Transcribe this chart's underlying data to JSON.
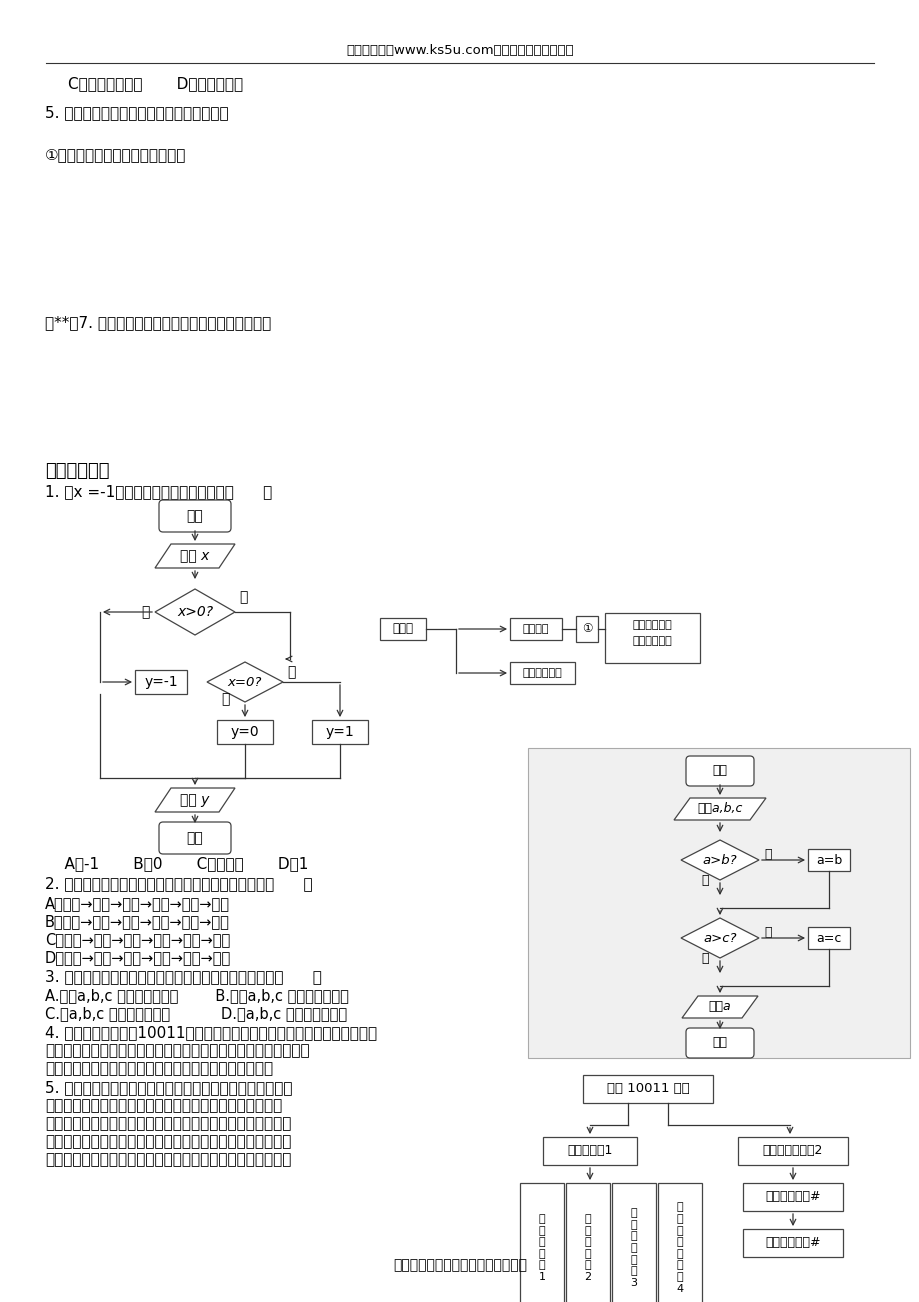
{
  "bg_color": "#ffffff",
  "header_text": "高考资源网（www.ks5u.com），您身边的高考专家",
  "line1": "C．概率统计定义       D．概率的应用",
  "line2": "5. 如图是按边对三角形进行分类的结构图，",
  "line3": "①处应填入＿＿＿＿＿＿＿＿＿．",
  "line4": "（**）7. 请画出判断一个数是否是素数的算法框图。",
  "section": "四．课后练习",
  "q1": "1. 把x =-1输入如图所示的流程图可得（      ）",
  "q1_options": "    A．-1       B．0       C．不存在       D．1",
  "q2": "2. 下面是去图书馆借阅图书的流程图，表示正确的是（      ）",
  "q2_A": "A．入库→阅览→找书→还书→出库→借书",
  "q2_B": "B．入库→找书→阅览→还书→出库→借书",
  "q2_C": "C．入库→找书→阅览→借书→出库→还书",
  "q2_D": "D．入库→找书→阅览→借书→还书→出库",
  "q3": "3. 给出以下一个算法的程序框图，该程序框图的功能是（      ）",
  "q3_A": "A.求出a,b,c 三数中的最大数        B.求出a,b,c 三数中的最小数",
  "q3_C": "C.将a,b,c 按从小到大排列           D.将a,b,c 按从大到小排列",
  "q4": "4. 某地通信公司推出10011电话服务，其中话费查询业务流程图如图所示，",
  "q4b": "如果某人（该公司用户）用手机查询该手机卡上余额，那么操作步",
  "q4c": "骤＿＿＿＿＿＿＿＿＿＿＿＿＿＿＿＿＿＿＿＿＿＿＿＿",
  "q5": "5. 要在某一规划区域内筹建工厂，拆迁和工程设计可以同时",
  "q5b": "进行。如果工程设计分为两个部分的话，那就是土建设计与",
  "q5c": "设备采购，这两项又可以同时进行。显然，当拆迁工作和土建",
  "q5d": "设计进行完之后，才能进行厂房土建工程，在厂房土建工程和",
  "q5e": "设备采购进行完之后，才能进行设备安装和调试，待此工序完",
  "footer": "欢迎广大教师踊跃来稿，稿酬丰厚。",
  "col1": "当\n前\n话\n费\n按\n1",
  "col2": "余\n额\n查\n询\n按\n2",
  "col3": "月\n结\n费\n查\n询\n按\n3",
  "col4": "传\n真\n话\n费\n详\n单\n按\n4"
}
